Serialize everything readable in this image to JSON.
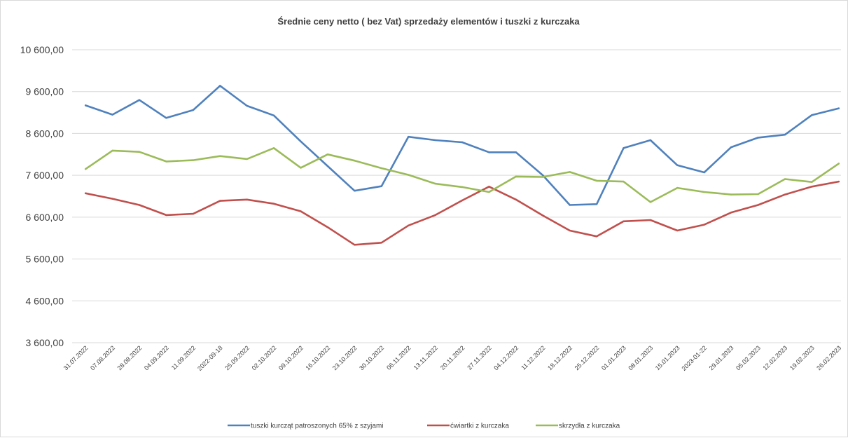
{
  "chart_data": {
    "type": "line",
    "title": "Średnie ceny netto ( bez Vat) sprzedaży elementów i tuszki z kurczaka",
    "xlabel": "",
    "ylabel": "",
    "ylim": [
      3600,
      10600
    ],
    "yticks": [
      3600,
      4600,
      5600,
      6600,
      7600,
      8600,
      9600,
      10600
    ],
    "ytick_labels": [
      "3 600,00",
      "4 600,00",
      "5 600,00",
      "6 600,00",
      "7 600,00",
      "8 600,00",
      "9 600,00",
      "10 600,00"
    ],
    "grid": "horizontal",
    "legend_position": "bottom",
    "categories": [
      "31.07.2022",
      "07.08.2022",
      "28.08.2022",
      "04.09.2022",
      "11.09.2022",
      "2022-09-18",
      "25.09.2022",
      "02.10.2022",
      "09.10.2022",
      "16.10.2022",
      "23.10.2022",
      "30.10.2022",
      "06.11.2022",
      "13.11.2022",
      "20.11.2022",
      "27.11.2022",
      "04.12.2022",
      "11.12.2022",
      "18.12.2022",
      "25.12.2022",
      "01.01.2023",
      "08.01.2023",
      "15.01.2023",
      "2023-01-22",
      "29.01.2023",
      "05.02.2023",
      "12.02.2023",
      "19.02.2023",
      "26.02.2023"
    ],
    "series": [
      {
        "name": "tuszki kurcząt patroszonych 65% z szyjami",
        "color": "#4f81bd",
        "values": [
          9270,
          9050,
          9400,
          8970,
          9160,
          9740,
          9260,
          9030,
          8410,
          7820,
          7230,
          7340,
          8520,
          8440,
          8390,
          8150,
          8150,
          7600,
          6890,
          6910,
          8250,
          8440,
          7840,
          7670,
          8270,
          8500,
          8570,
          9040,
          9200
        ]
      },
      {
        "name": "ćwiartki z kurczaka",
        "color": "#c0504d",
        "values": [
          7170,
          7040,
          6890,
          6650,
          6680,
          6990,
          7020,
          6920,
          6740,
          6360,
          5940,
          5990,
          6400,
          6650,
          7000,
          7330,
          7020,
          6640,
          6280,
          6140,
          6500,
          6530,
          6280,
          6420,
          6710,
          6890,
          7140,
          7330,
          7450
        ]
      },
      {
        "name": "skrzydła z kurczaka",
        "color": "#9bbb59",
        "values": [
          7750,
          8190,
          8160,
          7930,
          7960,
          8060,
          7990,
          8250,
          7780,
          8100,
          7950,
          7770,
          7610,
          7400,
          7320,
          7200,
          7570,
          7560,
          7680,
          7470,
          7450,
          6960,
          7300,
          7200,
          7140,
          7150,
          7510,
          7440,
          7880
        ]
      }
    ]
  }
}
